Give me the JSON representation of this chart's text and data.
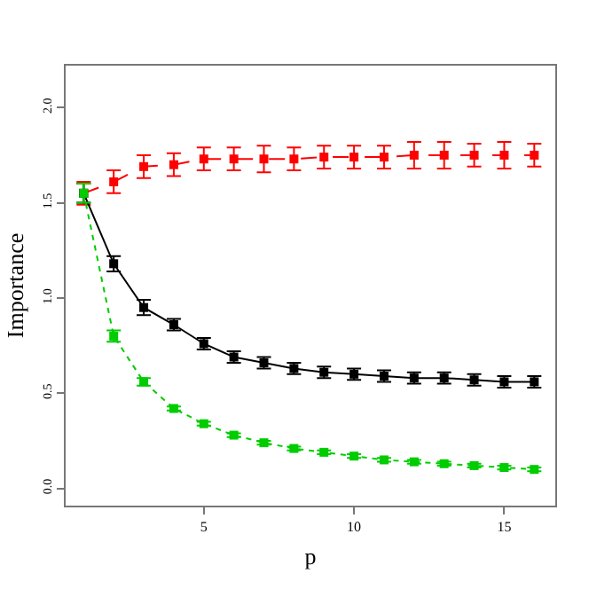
{
  "chart_data": {
    "type": "line",
    "xlabel": "p",
    "ylabel": "Importance",
    "x": [
      1,
      2,
      3,
      4,
      5,
      6,
      7,
      8,
      9,
      10,
      11,
      12,
      13,
      14,
      15,
      16
    ],
    "xlim": [
      0.4,
      16.7
    ],
    "xticks": [
      5,
      10,
      15
    ],
    "ylim": [
      -0.09,
      2.22
    ],
    "yticks": [
      {
        "value": 0,
        "label": "0.0"
      },
      {
        "value": 0.5,
        "label": "0.5"
      },
      {
        "value": 1,
        "label": "1.0"
      },
      {
        "value": 1.5,
        "label": "1.5"
      },
      {
        "value": 2,
        "label": "2.0"
      }
    ],
    "grid": false,
    "marker": "square",
    "series": [
      {
        "color": "#ff0000",
        "line_style": "dashed",
        "values": [
          1.55,
          1.61,
          1.69,
          1.7,
          1.73,
          1.73,
          1.73,
          1.73,
          1.74,
          1.74,
          1.74,
          1.75,
          1.75,
          1.75,
          1.75,
          1.75
        ],
        "errors": [
          0.06,
          0.06,
          0.06,
          0.06,
          0.06,
          0.06,
          0.07,
          0.06,
          0.06,
          0.06,
          0.06,
          0.07,
          0.07,
          0.06,
          0.07,
          0.06
        ]
      },
      {
        "color": "#000000",
        "line_style": "solid",
        "values": [
          1.55,
          1.18,
          0.95,
          0.86,
          0.76,
          0.69,
          0.66,
          0.63,
          0.61,
          0.6,
          0.59,
          0.58,
          0.58,
          0.57,
          0.56,
          0.56
        ],
        "errors": [
          0.05,
          0.04,
          0.04,
          0.03,
          0.03,
          0.03,
          0.03,
          0.03,
          0.03,
          0.03,
          0.03,
          0.03,
          0.03,
          0.03,
          0.03,
          0.03
        ]
      },
      {
        "color": "#00cc00",
        "line_style": "dotted",
        "values": [
          1.55,
          0.8,
          0.56,
          0.42,
          0.34,
          0.28,
          0.24,
          0.21,
          0.19,
          0.17,
          0.15,
          0.14,
          0.13,
          0.12,
          0.11,
          0.1
        ],
        "errors": [
          0.05,
          0.03,
          0.02,
          0.01,
          0.01,
          0.01,
          0.01,
          0.01,
          0.01,
          0.01,
          0.01,
          0.01,
          0.01,
          0.01,
          0.01,
          0.01
        ]
      }
    ]
  }
}
